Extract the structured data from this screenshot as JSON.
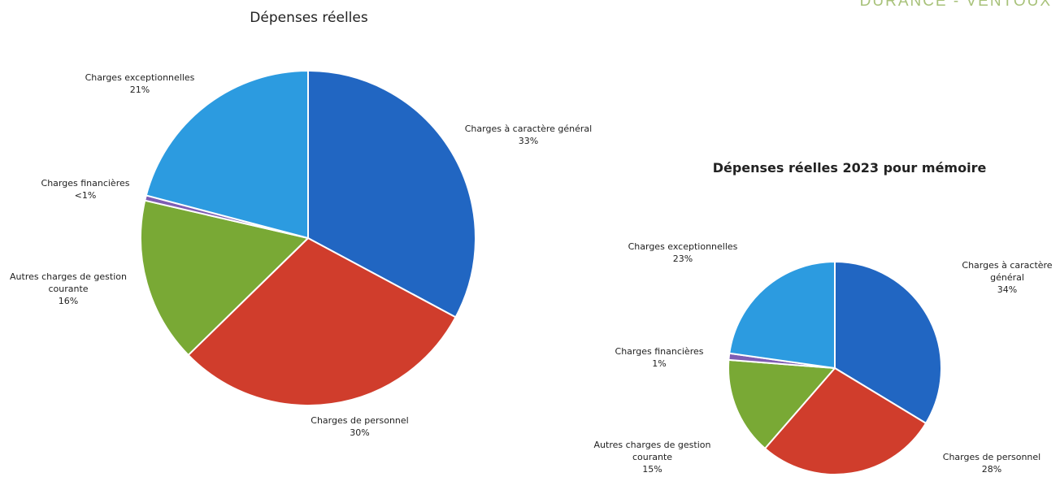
{
  "header": {
    "brand": "DURANCE - VENTOUX"
  },
  "chart_data": [
    {
      "type": "pie",
      "title": "Dépenses réelles",
      "slices": [
        {
          "label": "Charges à caractère général",
          "display": "33%",
          "value": 33,
          "color": "#2166c2"
        },
        {
          "label": "Charges de personnel",
          "display": "30%",
          "value": 30,
          "color": "#d03d2c"
        },
        {
          "label": "Autres charges de gestion courante",
          "display": "16%",
          "value": 16,
          "color": "#79a935"
        },
        {
          "label": "Charges financières",
          "display": "<1%",
          "value": 0.5,
          "color": "#7e5db3"
        },
        {
          "label": "Charges exceptionnelles",
          "display": "21%",
          "value": 21,
          "color": "#2c9be0"
        }
      ]
    },
    {
      "type": "pie",
      "title": "Dépenses réelles 2023 pour mémoire",
      "slices": [
        {
          "label": "Charges à caractère général",
          "display": "34%",
          "value": 34,
          "color": "#2166c2"
        },
        {
          "label": "Charges de personnel",
          "display": "28%",
          "value": 28,
          "color": "#d03d2c"
        },
        {
          "label": "Autres charges de gestion courante",
          "display": "15%",
          "value": 15,
          "color": "#79a935"
        },
        {
          "label": "Charges financières",
          "display": "1%",
          "value": 1,
          "color": "#7e5db3"
        },
        {
          "label": "Charges exceptionnelles",
          "display": "23%",
          "value": 23,
          "color": "#2c9be0"
        }
      ]
    }
  ]
}
